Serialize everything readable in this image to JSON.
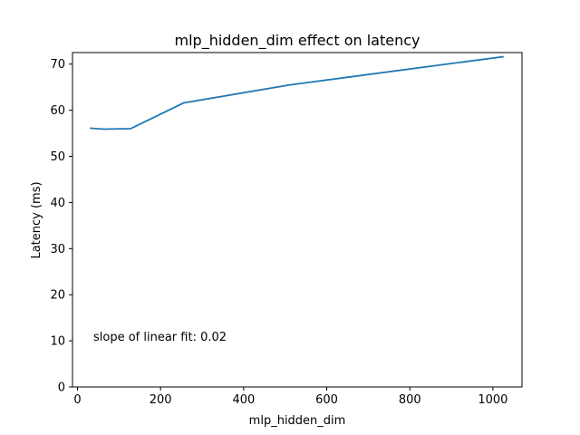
{
  "chart_data": {
    "type": "line",
    "title": "mlp_hidden_dim effect on latency",
    "xlabel": "mlp_hidden_dim",
    "ylabel": "Latency (ms)",
    "xlim": [
      -12,
      1070
    ],
    "ylim": [
      0,
      72.5
    ],
    "xticks": [
      0,
      200,
      400,
      600,
      800,
      1000
    ],
    "yticks": [
      0,
      10,
      20,
      30,
      40,
      50,
      60,
      70
    ],
    "grid": false,
    "series": [
      {
        "color": "#1f77b4",
        "x": [
          32,
          64,
          128,
          256,
          512,
          1024
        ],
        "y": [
          56.1,
          55.9,
          56.0,
          61.6,
          65.5,
          71.6
        ]
      }
    ],
    "annotation": "slope of linear fit: 0.02"
  }
}
